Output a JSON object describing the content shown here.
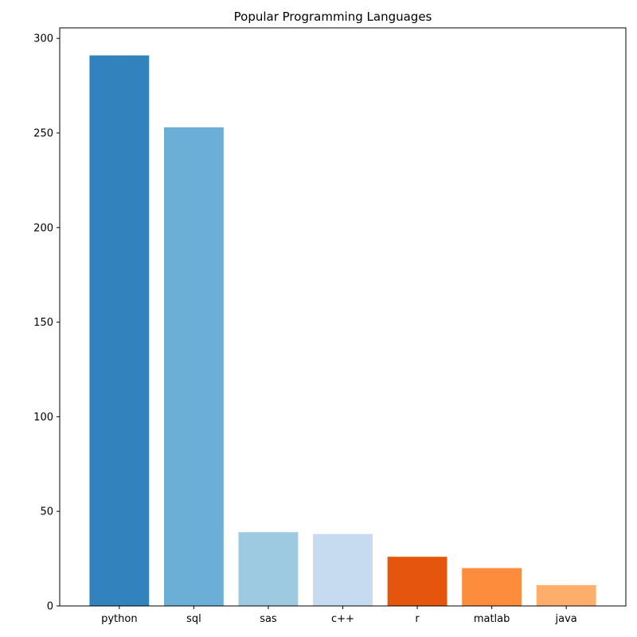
{
  "chart_data": {
    "type": "bar",
    "title": "Popular Programming Languages",
    "xlabel": "",
    "ylabel": "",
    "categories": [
      "python",
      "sql",
      "sas",
      "c++",
      "r",
      "matlab",
      "java"
    ],
    "values": [
      291,
      253,
      39,
      38,
      26,
      20,
      11
    ],
    "colors": [
      "#3182bd",
      "#6baed6",
      "#9ecae1",
      "#c6dbef",
      "#e6550d",
      "#fd8d3c",
      "#fdae6b"
    ],
    "ylim": [
      0,
      305.55
    ],
    "yticks": [
      0,
      50,
      100,
      150,
      200,
      250,
      300
    ],
    "grid": false,
    "legend": "none"
  }
}
